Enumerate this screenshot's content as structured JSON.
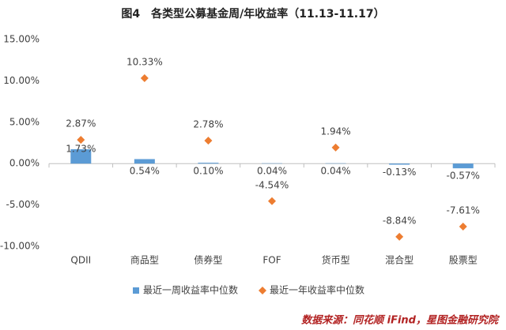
{
  "chart_data": {
    "type": "bar-marker",
    "title": "图4　各类型公募基金周/年收益率（11.13-11.17）",
    "categories": [
      "QDII",
      "商品型",
      "债券型",
      "FOF",
      "货币型",
      "混合型",
      "股票型"
    ],
    "series": [
      {
        "name": "最近一周收益率中位数",
        "color": "#5b9bd5",
        "kind": "bar",
        "values": [
          1.73,
          0.54,
          0.1,
          0.04,
          0.04,
          -0.13,
          -0.57
        ],
        "value_labels": [
          "1.73%",
          "0.54%",
          "0.10%",
          "0.04%",
          "0.04%",
          "-0.13%",
          "-0.57%"
        ]
      },
      {
        "name": "最近一年收益率中位数",
        "color": "#ed7d31",
        "kind": "marker",
        "values": [
          2.87,
          10.33,
          2.78,
          -4.54,
          1.94,
          -8.84,
          -7.61
        ],
        "value_labels": [
          "2.87%",
          "10.33%",
          "2.78%",
          "-4.54%",
          "1.94%",
          "-8.84%",
          "-7.61%"
        ]
      }
    ],
    "ylim": [
      -10,
      15
    ],
    "yticks": [
      {
        "value": -10,
        "label": "-10.00%"
      },
      {
        "value": -5,
        "label": "-5.00%"
      },
      {
        "value": 0,
        "label": "0.00%"
      },
      {
        "value": 5,
        "label": "5.00%"
      },
      {
        "value": 10,
        "label": "10.00%"
      },
      {
        "value": 15,
        "label": "15.00%"
      }
    ],
    "source": "数据来源：同花顺 iFind，星图金融研究院"
  }
}
